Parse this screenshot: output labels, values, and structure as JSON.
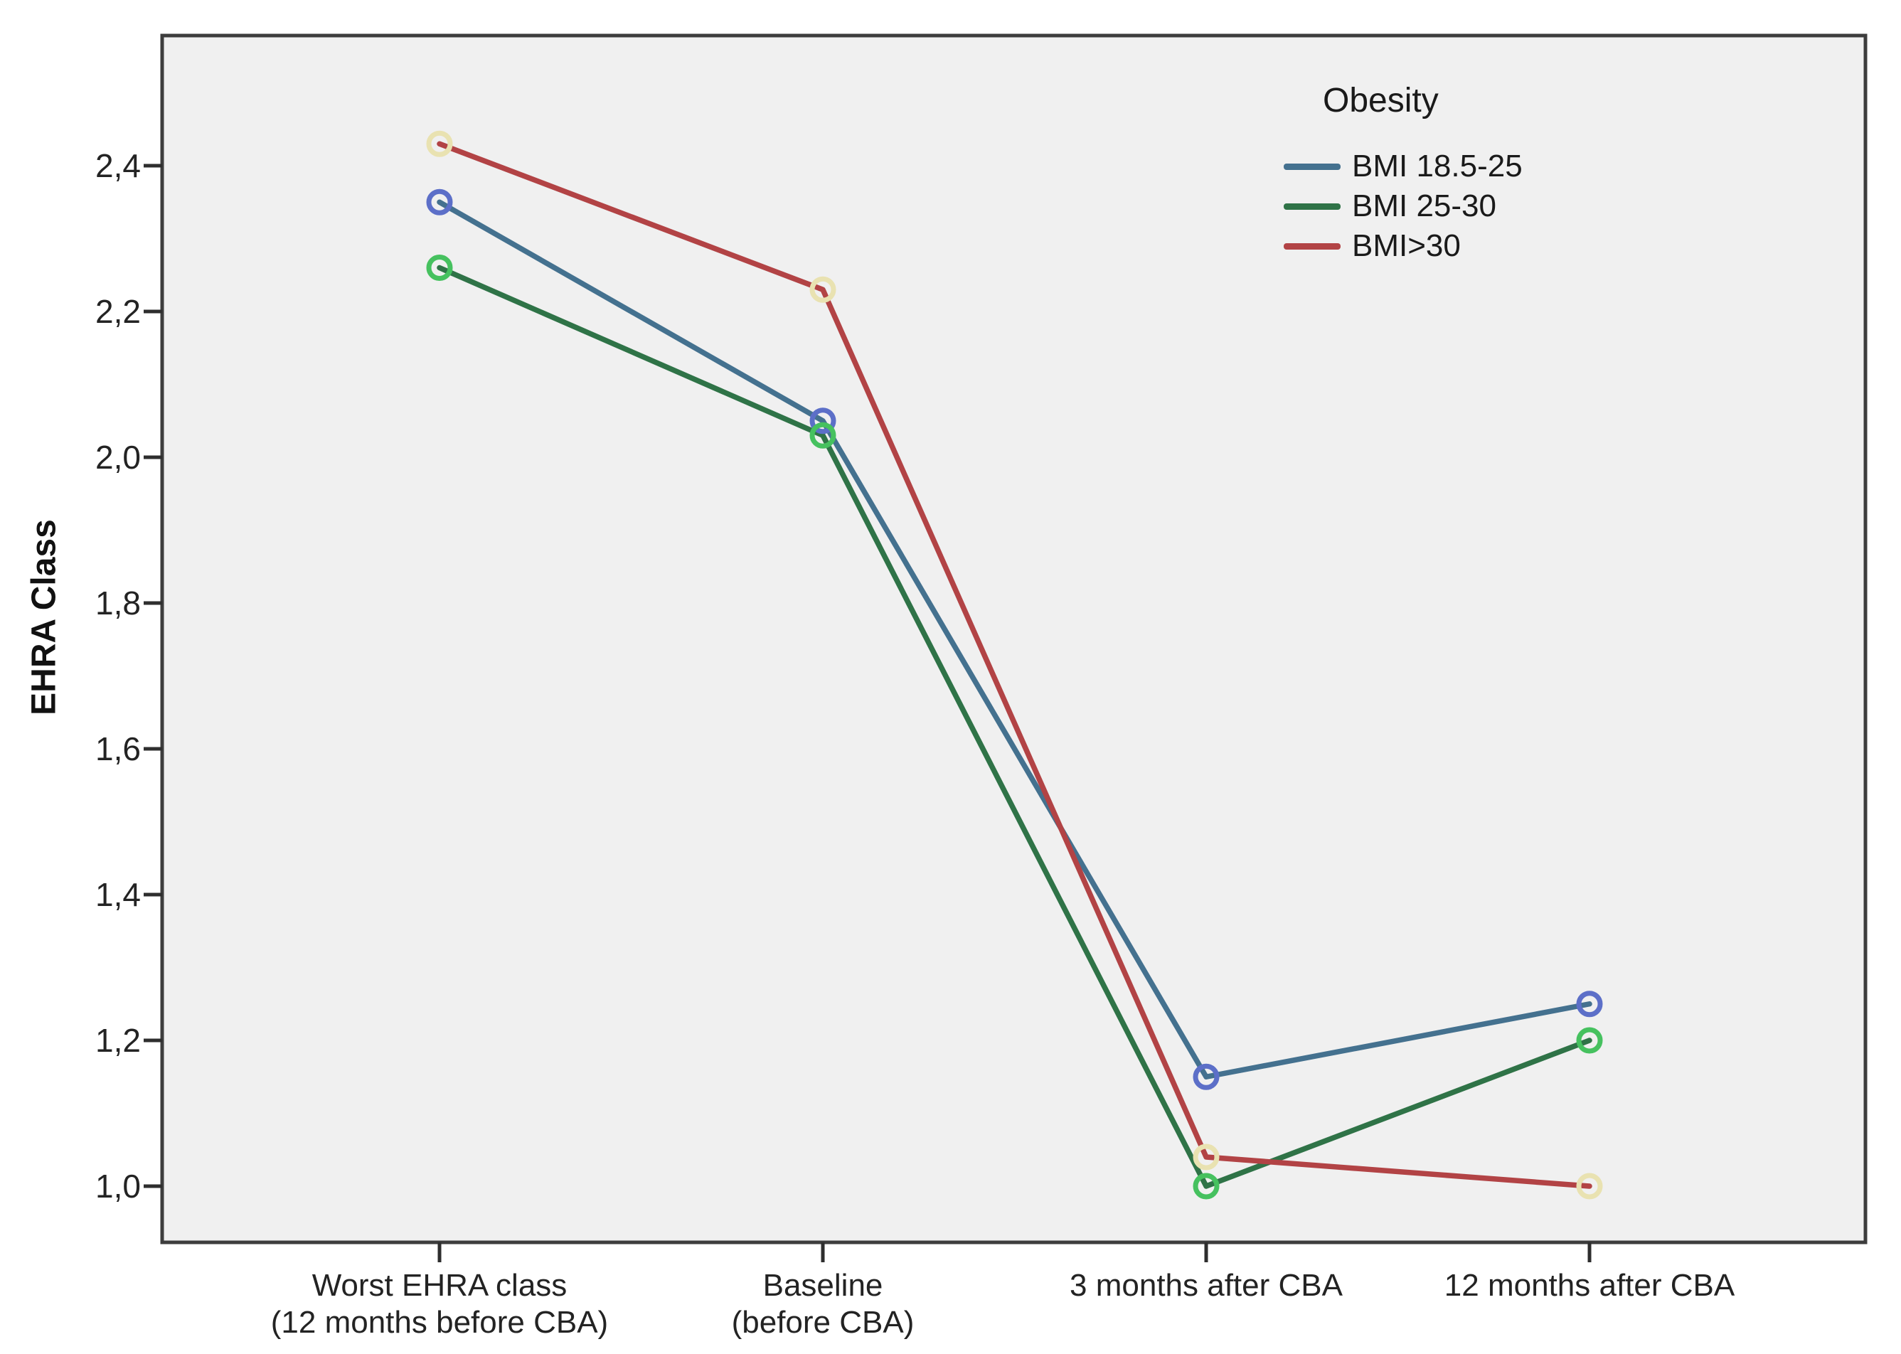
{
  "chart_data": {
    "type": "line",
    "title": "",
    "xlabel": "",
    "ylabel": "EHRA Class",
    "legend_title": "Obesity",
    "legend_position": "top-right-inside",
    "grid": false,
    "plot_background": "#f0f0f0",
    "frame_color": "#3d3d3d",
    "tick_color": "#2e2e2e",
    "ylim": [
      0.92,
      2.58
    ],
    "yticks": [
      {
        "label": "1,0",
        "value": 1.0
      },
      {
        "label": "1,2",
        "value": 1.2
      },
      {
        "label": "1,4",
        "value": 1.4
      },
      {
        "label": "1,6",
        "value": 1.6
      },
      {
        "label": "1,8",
        "value": 1.8
      },
      {
        "label": "2,0",
        "value": 2.0
      },
      {
        "label": "2,2",
        "value": 2.2
      },
      {
        "label": "2,4",
        "value": 2.4
      }
    ],
    "categories": [
      {
        "lines": [
          "Worst EHRA class",
          "(12 months before CBA)"
        ]
      },
      {
        "lines": [
          "Baseline",
          "(before CBA)"
        ]
      },
      {
        "lines": [
          "3 months after CBA"
        ]
      },
      {
        "lines": [
          "12 months after CBA"
        ]
      }
    ],
    "series": [
      {
        "name": "BMI 18.5-25",
        "line_color": "#44718f",
        "marker_color": "#5c6fc8",
        "values": [
          2.35,
          2.05,
          1.15,
          1.25
        ]
      },
      {
        "name": "BMI 25-30",
        "line_color": "#2f7347",
        "marker_color": "#46c15f",
        "values": [
          2.26,
          2.03,
          1.0,
          1.2
        ]
      },
      {
        "name": "BMI>30",
        "line_color": "#b24345",
        "marker_color": "#e9e2b1",
        "values": [
          2.43,
          2.23,
          1.04,
          1.0
        ]
      }
    ]
  }
}
